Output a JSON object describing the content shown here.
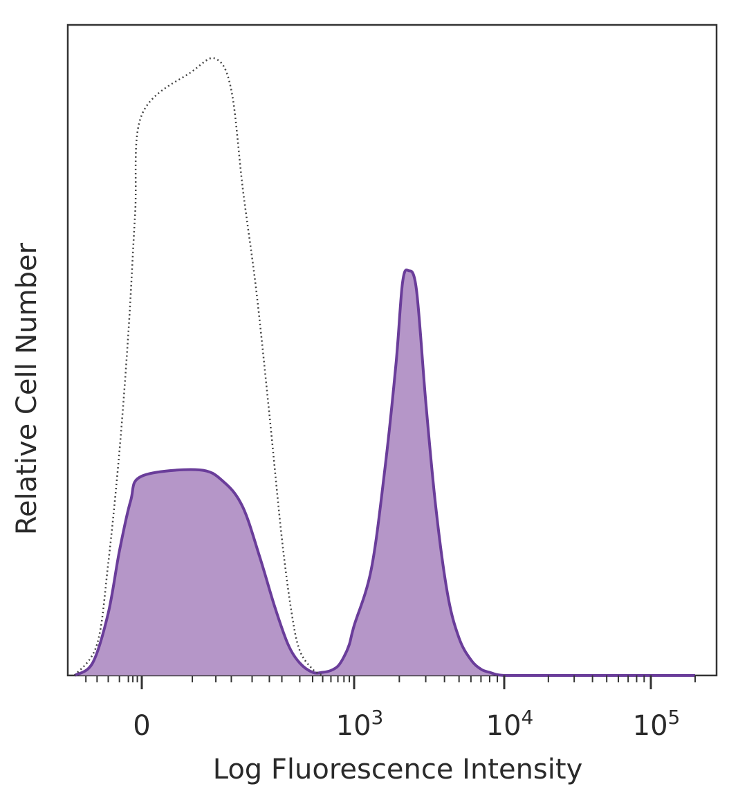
{
  "chart_data": {
    "type": "area",
    "title": "",
    "xlabel": "Log Fluorescence Intensity",
    "ylabel": "Relative Cell Number",
    "x_scale": "biexponential",
    "xlim": [
      -300,
      200000
    ],
    "ylim": [
      0,
      1.0
    ],
    "grid": false,
    "legend": "none",
    "x_ticks": [
      {
        "value": 0,
        "label": "0",
        "sup": ""
      },
      {
        "value": 1000,
        "label": "10",
        "sup": "3"
      },
      {
        "value": 10000,
        "label": "10",
        "sup": "4"
      },
      {
        "value": 100000,
        "label": "10",
        "sup": "5"
      }
    ],
    "series": [
      {
        "style": "dotted-outline",
        "color": "#444444",
        "x": [
          -300,
          -200,
          -150,
          -100,
          -60,
          -30,
          0,
          20,
          40,
          60,
          80,
          110,
          150,
          200,
          250,
          300,
          400,
          500
        ],
        "y": [
          0.0,
          0.05,
          0.18,
          0.36,
          0.55,
          0.74,
          0.9,
          0.97,
          0.99,
          0.94,
          0.78,
          0.62,
          0.42,
          0.22,
          0.1,
          0.04,
          0.01,
          0.0
        ]
      },
      {
        "style": "filled",
        "color": "#6a3d9a",
        "fill": "#b596c8",
        "x": [
          -300,
          -220,
          -150,
          -100,
          -50,
          0,
          25,
          50,
          80,
          120,
          170,
          230,
          300,
          400,
          500,
          600,
          700,
          800,
          900,
          1000,
          1300,
          1600,
          1900,
          2100,
          2300,
          2600,
          3000,
          3500,
          4200,
          5000,
          6000,
          7000,
          8000,
          10000,
          20000,
          50000,
          100000,
          200000
        ],
        "y": [
          0.0,
          0.02,
          0.1,
          0.2,
          0.28,
          0.32,
          0.33,
          0.31,
          0.27,
          0.19,
          0.11,
          0.05,
          0.02,
          0.005,
          0.005,
          0.008,
          0.015,
          0.03,
          0.05,
          0.08,
          0.17,
          0.33,
          0.5,
          0.63,
          0.65,
          0.62,
          0.44,
          0.27,
          0.13,
          0.06,
          0.025,
          0.01,
          0.005,
          0.0,
          0.0,
          0.0,
          0.0,
          0.0
        ]
      }
    ]
  }
}
